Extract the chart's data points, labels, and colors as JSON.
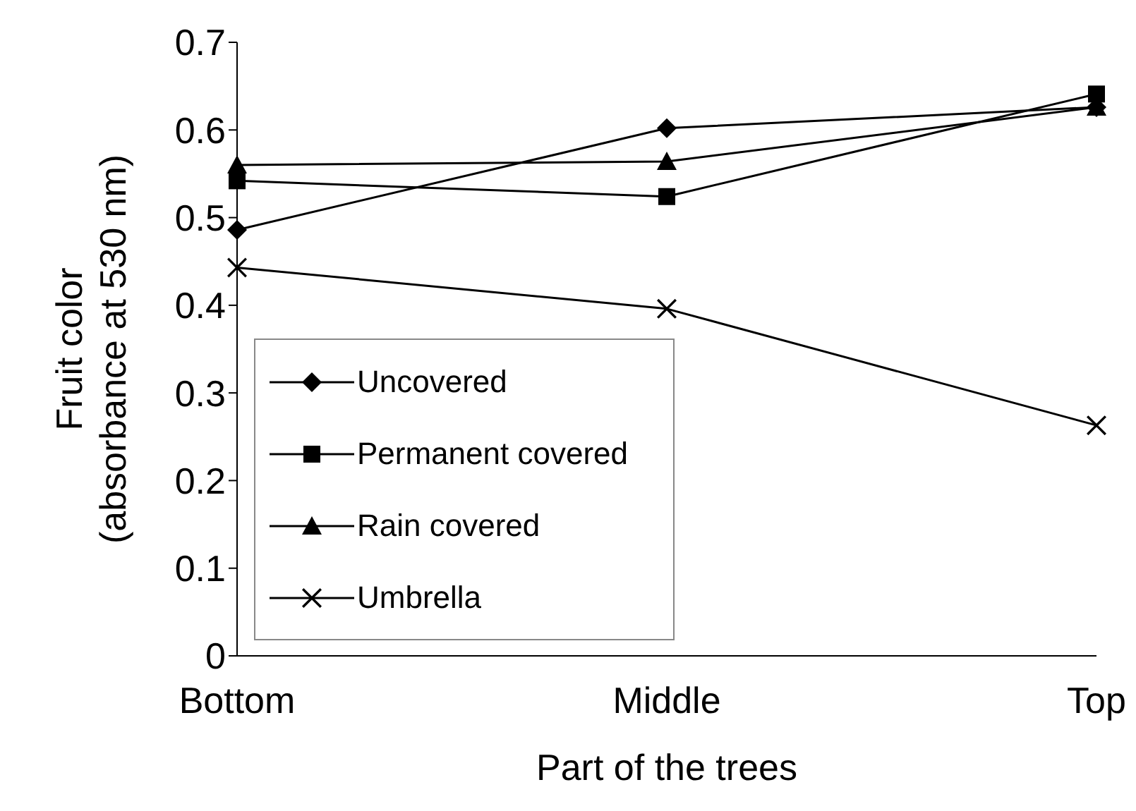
{
  "chart_data": {
    "type": "line",
    "xlabel": "Part of the trees",
    "ylabel": "Fruit color\n(absorbance at 530 nm)",
    "categories": [
      "Bottom",
      "Middle",
      "Top"
    ],
    "ylim": [
      0,
      0.7
    ],
    "yticks": [
      0,
      0.1,
      0.2,
      0.3,
      0.4,
      0.5,
      0.6,
      0.7
    ],
    "grid": false,
    "legend": "bottom left",
    "line_style": "solid",
    "series": [
      {
        "name": "Uncovered",
        "color": "#000000",
        "marker": "diamond",
        "values": [
          0.486,
          0.602,
          0.626
        ]
      },
      {
        "name": "Permanent covered",
        "color": "#000000",
        "marker": "square",
        "values": [
          0.542,
          0.524,
          0.641
        ]
      },
      {
        "name": "Rain covered",
        "color": "#000000",
        "marker": "triangle",
        "values": [
          0.56,
          0.564,
          0.626
        ]
      },
      {
        "name": "Umbrella",
        "color": "#000000",
        "marker": "cross",
        "values": [
          0.443,
          0.396,
          0.263
        ]
      }
    ]
  }
}
